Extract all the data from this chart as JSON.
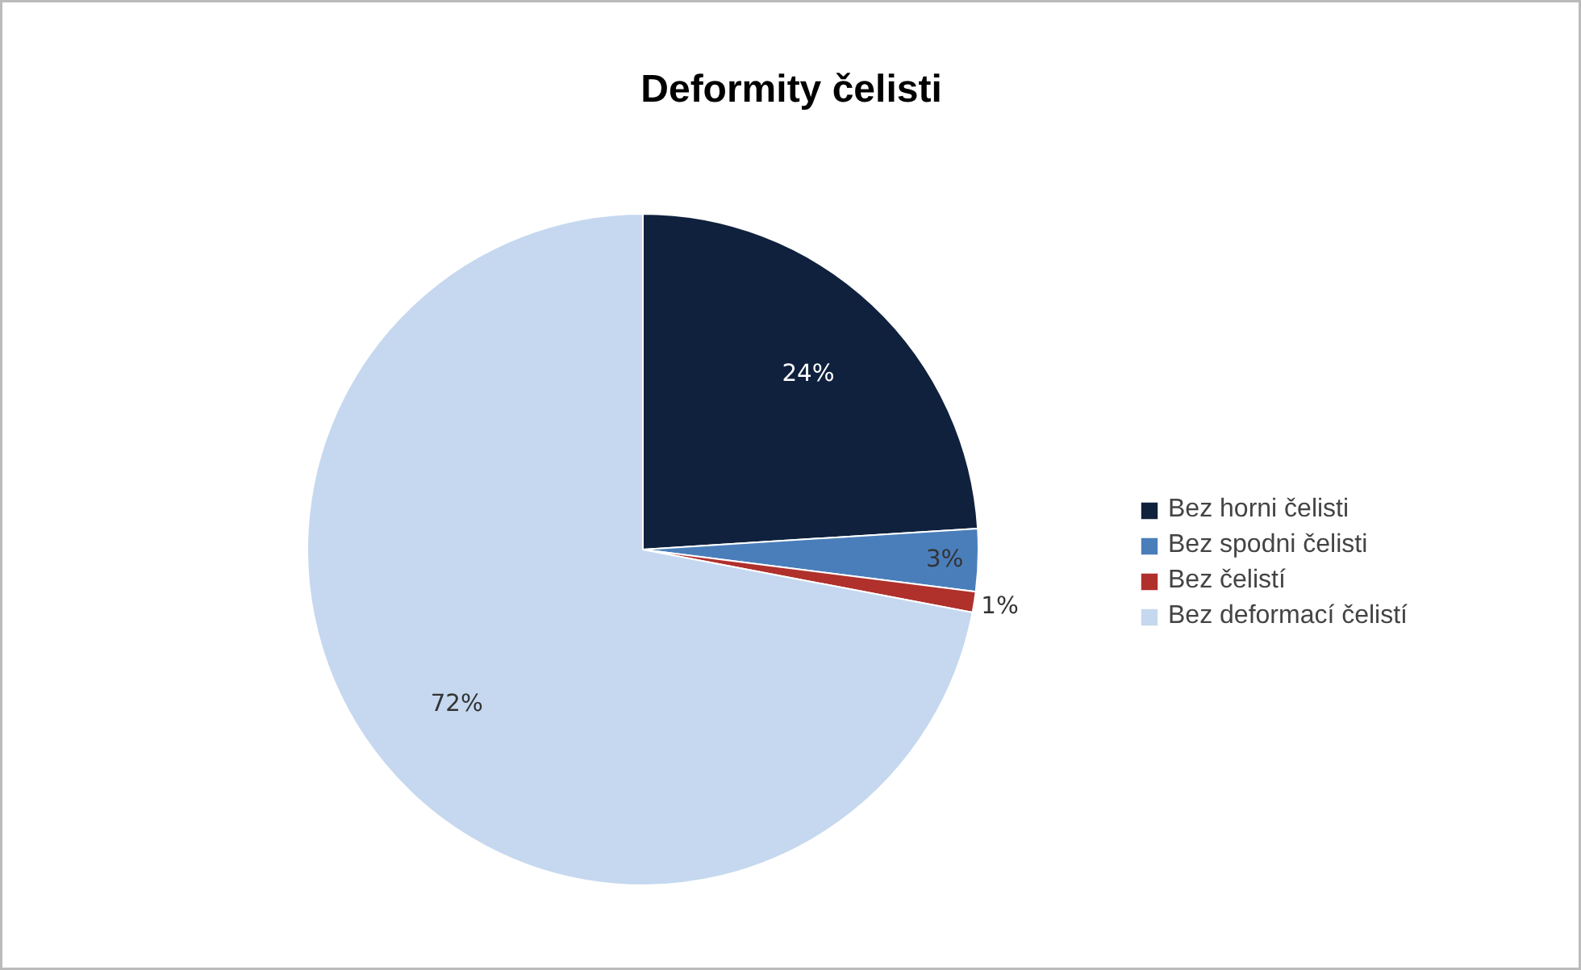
{
  "chart_data": {
    "type": "pie",
    "title": "Deformity čelisti",
    "categories": [
      "Bez horni čelisti",
      "Bez spodni čelisti",
      "Bez čelistí",
      "Bez deformací čelistí"
    ],
    "values": [
      24,
      3,
      1,
      72
    ],
    "colors": [
      "#0f213d",
      "#4a7ebb",
      "#b0302c",
      "#c5d8ef"
    ],
    "value_labels": [
      "24%",
      "3%",
      "1%",
      "72%"
    ],
    "legend": "right"
  }
}
